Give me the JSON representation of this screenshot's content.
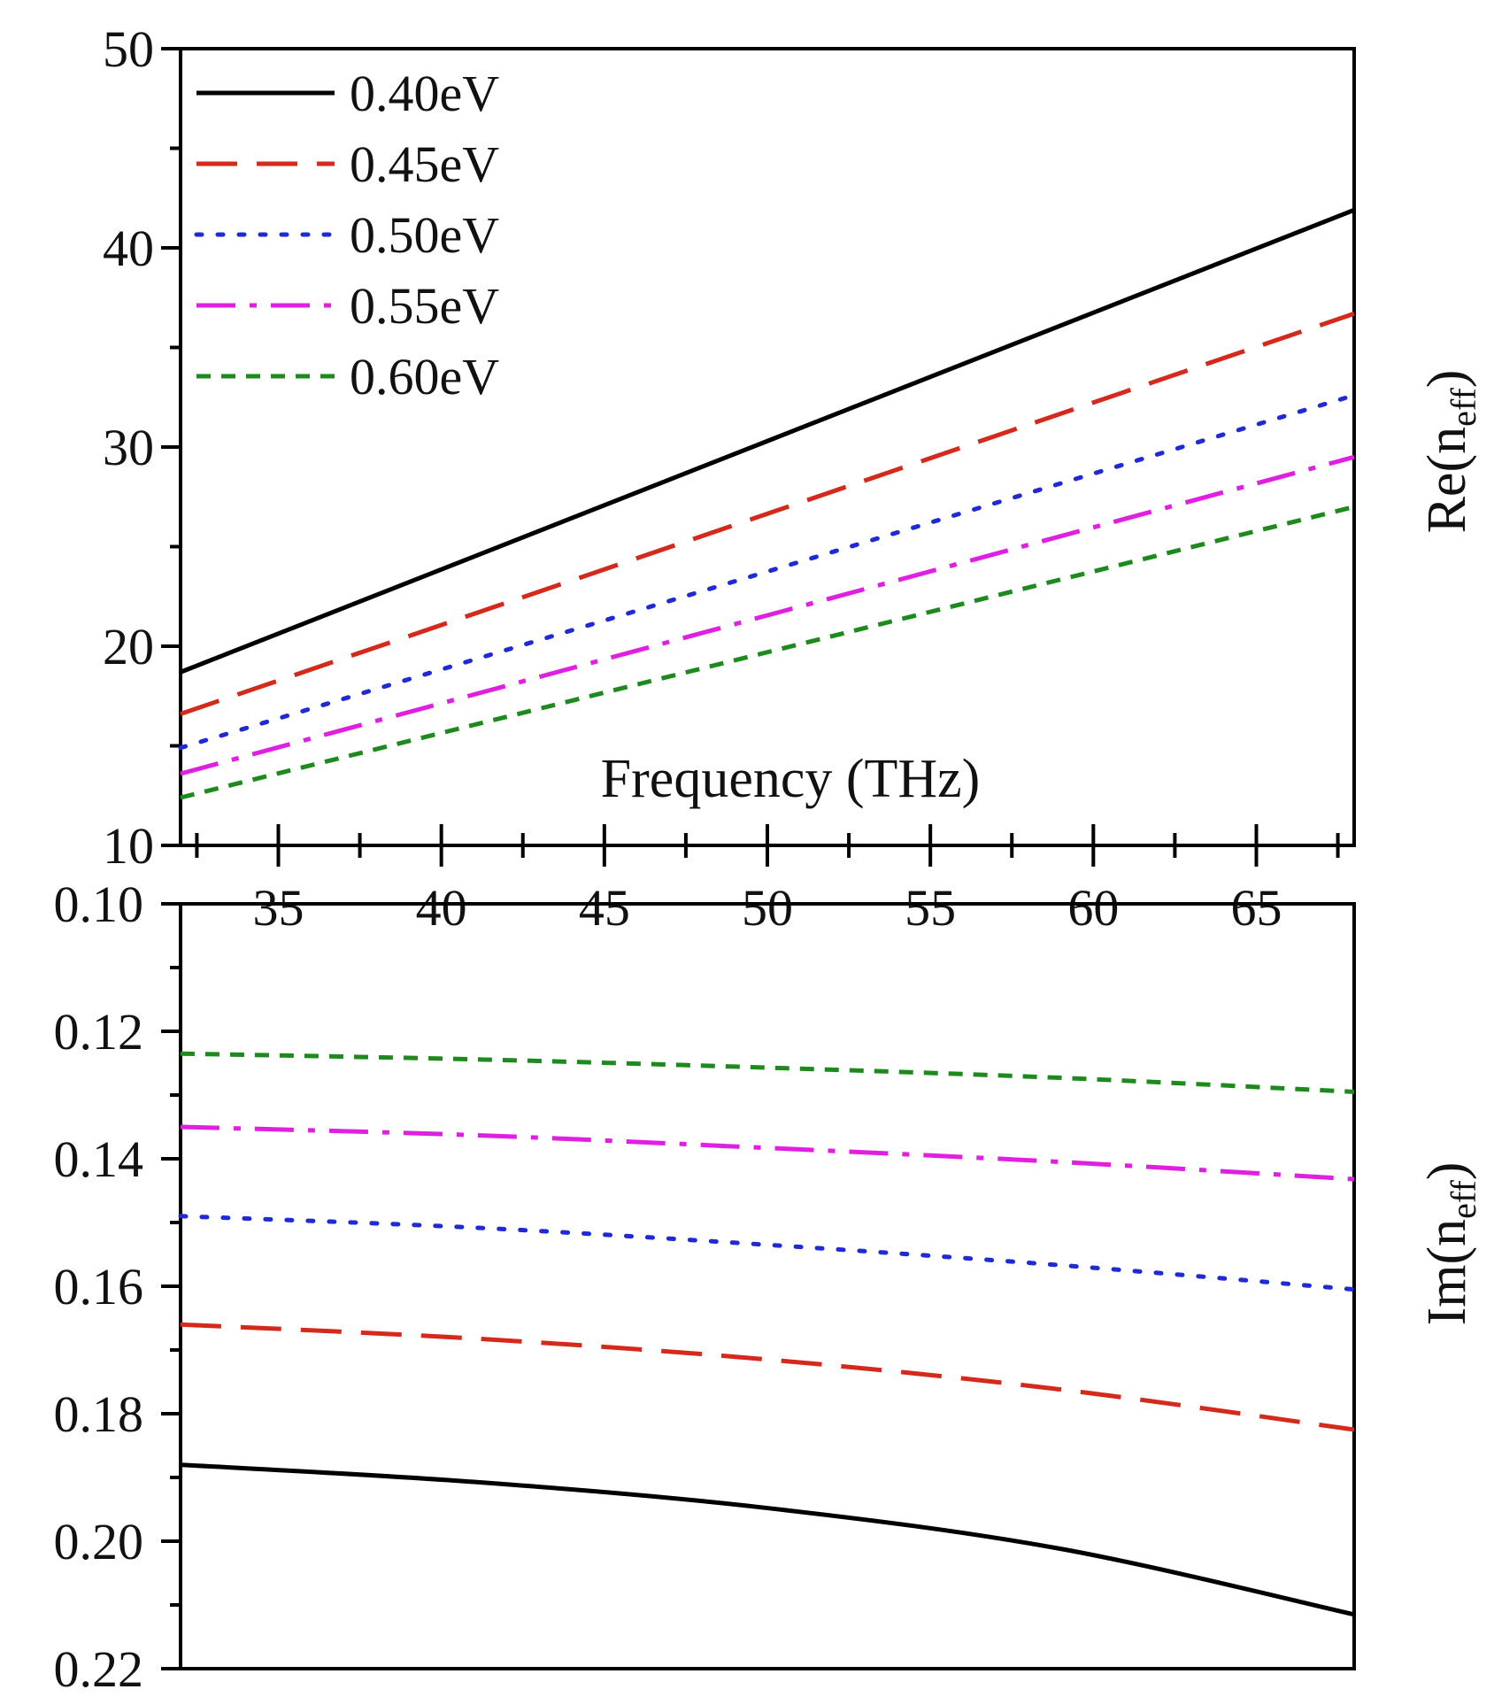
{
  "chart_data": [
    {
      "type": "line",
      "panel": "top",
      "title": "",
      "xlabel": "Frequency (THz)",
      "ylabel": "Re(neff)",
      "ylabel_main": "Re(n",
      "ylabel_sub": "eff",
      "ylabel_close": ")",
      "xlim": [
        32,
        68
      ],
      "ylim": [
        10,
        50
      ],
      "x_ticks": [
        35,
        40,
        45,
        50,
        55,
        60,
        65
      ],
      "x_tick_labels": [
        "35",
        "40",
        "45",
        "50",
        "55",
        "60",
        "65"
      ],
      "y_ticks": [
        10,
        20,
        30,
        40,
        50
      ],
      "y_tick_labels": [
        "10",
        "20",
        "30",
        "40",
        "50"
      ],
      "legend_position": "top-left",
      "grid": false,
      "series": [
        {
          "name": "0.40eV",
          "x": [
            32,
            68
          ],
          "values": [
            18.7,
            41.9
          ]
        },
        {
          "name": "0.45eV",
          "x": [
            32,
            68
          ],
          "values": [
            16.6,
            36.7
          ]
        },
        {
          "name": "0.50eV",
          "x": [
            32,
            68
          ],
          "values": [
            14.9,
            32.6
          ]
        },
        {
          "name": "0.55eV",
          "x": [
            32,
            68
          ],
          "values": [
            13.6,
            29.5
          ]
        },
        {
          "name": "0.60eV",
          "x": [
            32,
            68
          ],
          "values": [
            12.4,
            27.0
          ]
        }
      ]
    },
    {
      "type": "line",
      "panel": "bottom",
      "title": "",
      "xlabel": "",
      "ylabel": "Im(neff)",
      "ylabel_main": "Im(n",
      "ylabel_sub": "eff",
      "ylabel_close": ")",
      "xlim": [
        32,
        68
      ],
      "ylim": [
        0.1,
        0.22
      ],
      "y_inverted": true,
      "y_ticks": [
        0.1,
        0.12,
        0.14,
        0.16,
        0.18,
        0.2,
        0.22
      ],
      "y_tick_labels": [
        "0.10",
        "0.12",
        "0.14",
        "0.16",
        "0.18",
        "0.20",
        "0.22"
      ],
      "grid": false,
      "series": [
        {
          "name": "0.40eV",
          "x": [
            32,
            41,
            50,
            59,
            68
          ],
          "values": [
            0.188,
            0.1907,
            0.1948,
            0.2012,
            0.2115
          ]
        },
        {
          "name": "0.45eV",
          "x": [
            32,
            41,
            50,
            59,
            68
          ],
          "values": [
            0.166,
            0.1682,
            0.1715,
            0.1762,
            0.1825
          ]
        },
        {
          "name": "0.50eV",
          "x": [
            32,
            41,
            50,
            59,
            68
          ],
          "values": [
            0.149,
            0.1508,
            0.1535,
            0.1567,
            0.1605
          ]
        },
        {
          "name": "0.55eV",
          "x": [
            32,
            41,
            50,
            59,
            68
          ],
          "values": [
            0.135,
            0.1363,
            0.1383,
            0.1405,
            0.1432
          ]
        },
        {
          "name": "0.60eV",
          "x": [
            32,
            41,
            50,
            59,
            68
          ],
          "values": [
            0.1235,
            0.1244,
            0.1257,
            0.1273,
            0.1295
          ]
        }
      ]
    }
  ],
  "series_styles": [
    {
      "name": "0.40eV",
      "color": "#000000",
      "dash": "solid"
    },
    {
      "name": "0.45eV",
      "color": "#d42a1c",
      "dash": "dash"
    },
    {
      "name": "0.50eV",
      "color": "#1f2ad6",
      "dash": "dot"
    },
    {
      "name": "0.55eV",
      "color": "#e020e0",
      "dash": "dashdot"
    },
    {
      "name": "0.60eV",
      "color": "#1e8a1e",
      "dash": "shortdash"
    }
  ]
}
